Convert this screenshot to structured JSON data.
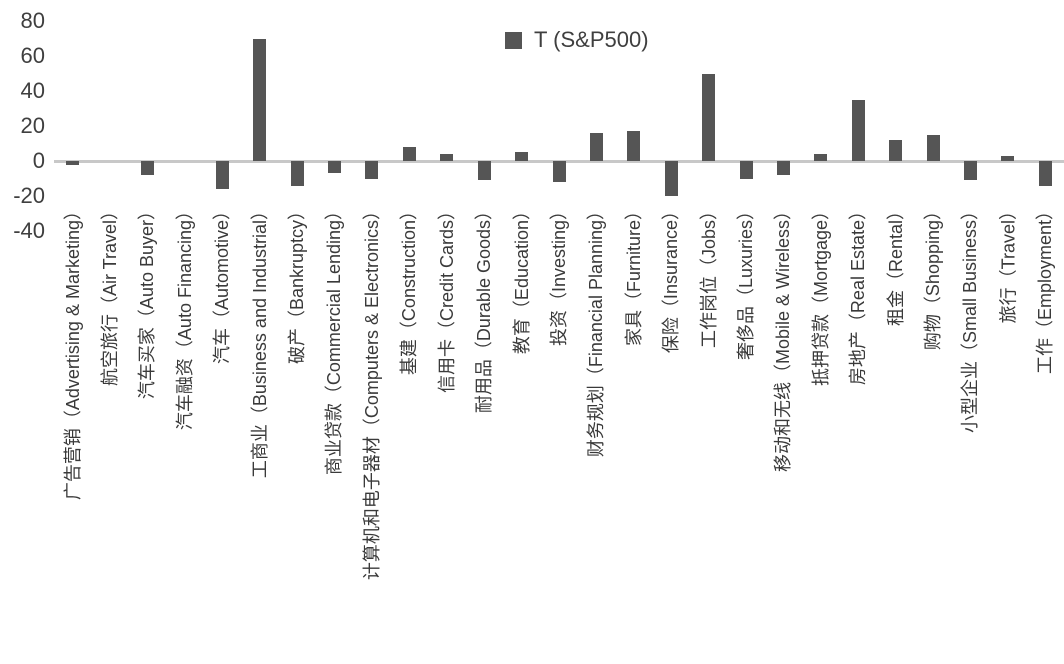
{
  "chart_data": {
    "type": "bar",
    "title": "",
    "xlabel": "",
    "ylabel": "",
    "ylim": [
      -40,
      80
    ],
    "yticks": [
      80,
      60,
      40,
      20,
      0,
      -20,
      -40
    ],
    "grid": false,
    "legend": {
      "label": "T (S&P500)",
      "position": "top-center"
    },
    "colors": {
      "bar": "#555555",
      "zero_line": "#c8c8c8",
      "text": "#3f3f3f",
      "background": "#ffffff"
    },
    "categories": [
      "广告营销（Advertising & Marketing）",
      "航空旅行（Air Travel）",
      "汽车买家（Auto Buyer）",
      "汽车融资（Auto Financing）",
      "汽车（Automotive）",
      "工商业（Business and Industrial）",
      "破产（Bankruptcy）",
      "商业贷款（Commercial Lending）",
      "计算机和电子器材（Computers & Electronics）",
      "基建（Construction）",
      "信用卡（Credit Cards）",
      "耐用品（Durable Goods）",
      "教育（Education）",
      "投资（Investing）",
      "财务规划（Financial Planning）",
      "家具（Furniture）",
      "保险（Insurance）",
      "工作岗位（Jobs）",
      "奢侈品（Luxuries）",
      "移动和无线（Mobile & Wireless）",
      "抵押贷款（Mortgage）",
      "房地产（Real Estate）",
      "租金（Rental）",
      "购物（Shopping）",
      "小型企业（Small Business）",
      "旅行（Travel）",
      "工作（Employment）"
    ],
    "series": [
      {
        "name": "T (S&P500)",
        "values": [
          -2,
          0,
          -8,
          0,
          -16,
          70,
          -14,
          -7,
          -10,
          8,
          4,
          -11,
          5,
          -12,
          16,
          17,
          -20,
          50,
          -10,
          -8,
          4,
          35,
          12,
          15,
          -11,
          3,
          -14
        ]
      }
    ]
  }
}
